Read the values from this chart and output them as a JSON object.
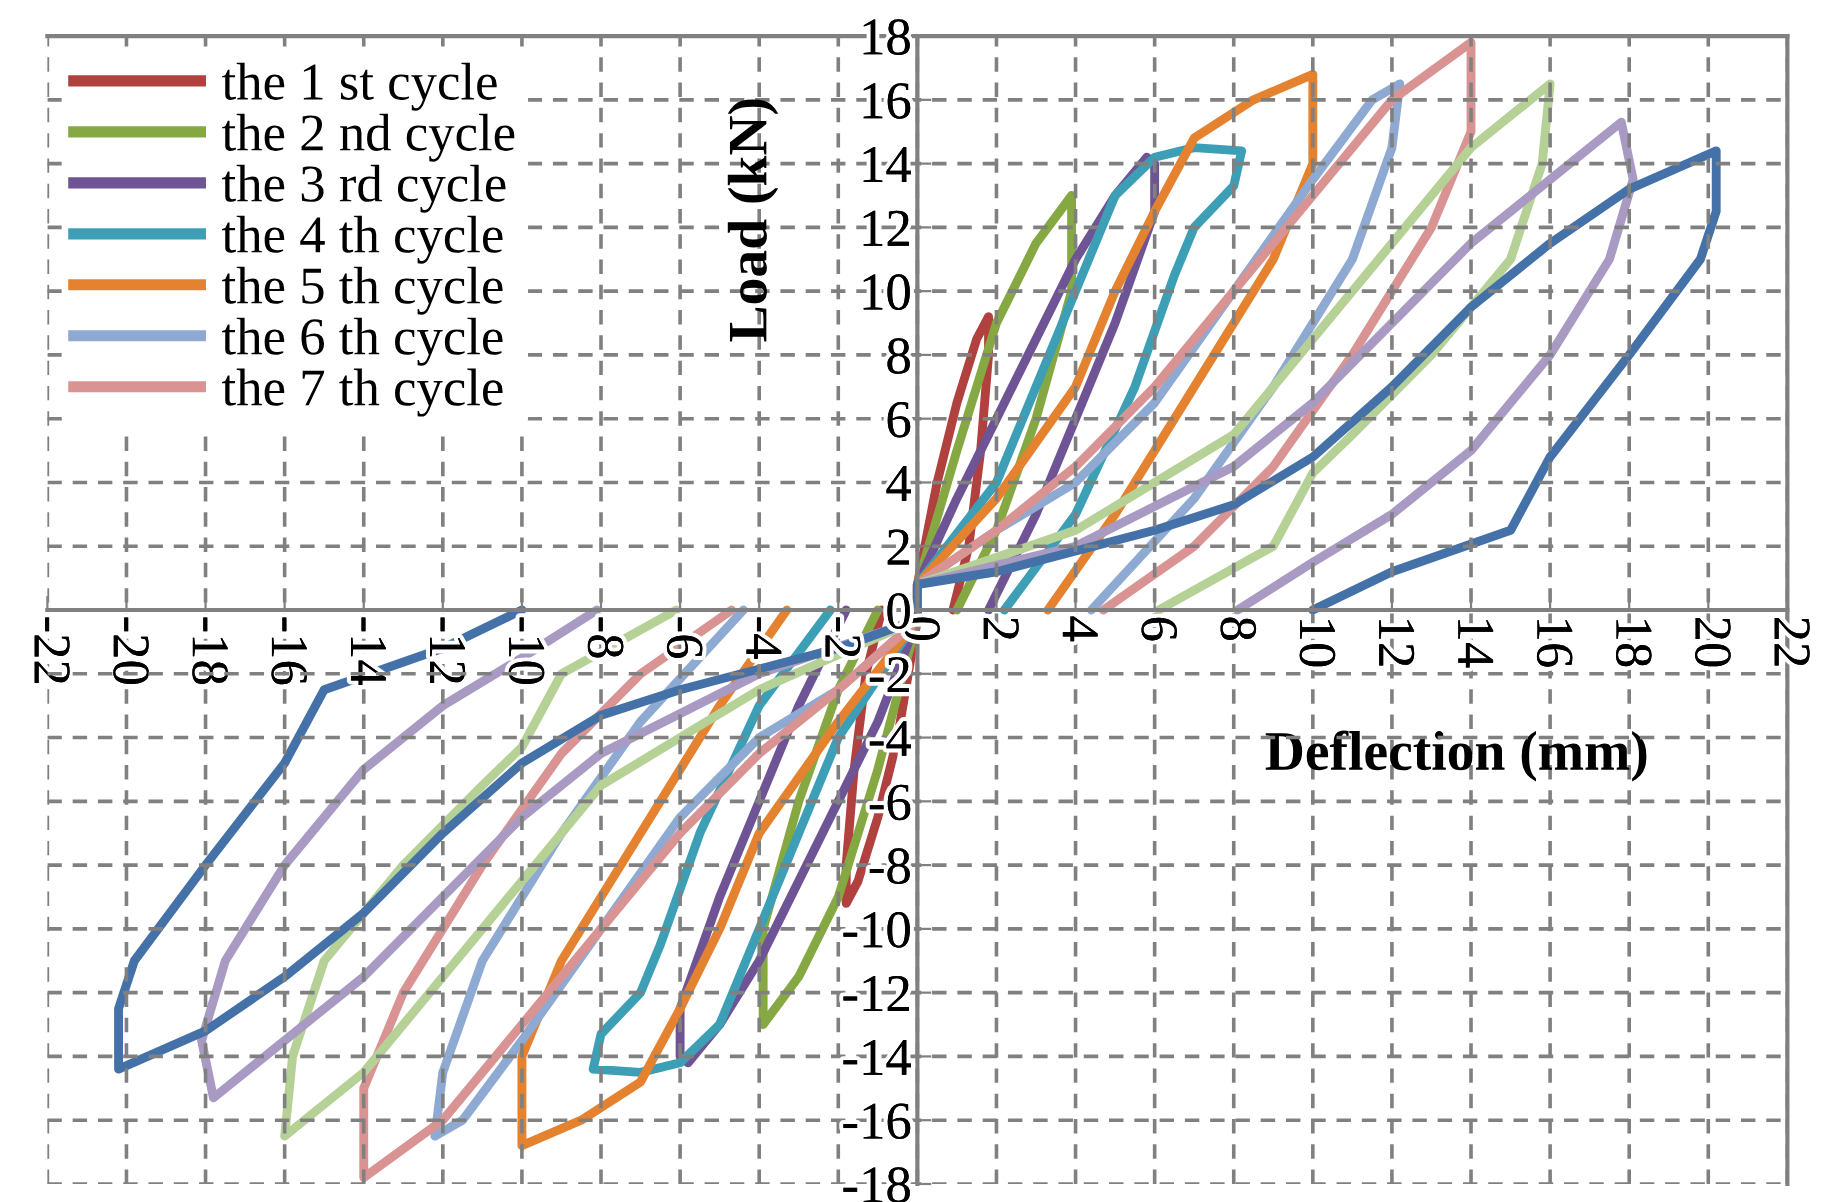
{
  "chart_data": {
    "type": "line",
    "xlabel": "Deflection (mm)",
    "ylabel": "Load (kN)",
    "xlim": [
      -22,
      22
    ],
    "ylim": [
      -18,
      18
    ],
    "xticks": [
      -22,
      -20,
      -18,
      -16,
      -14,
      -12,
      -10,
      -8,
      -6,
      -4,
      -2,
      0,
      2,
      4,
      6,
      8,
      10,
      12,
      14,
      16,
      18,
      20,
      22
    ],
    "yticks": [
      -18,
      -16,
      -14,
      -12,
      -10,
      -8,
      -6,
      -4,
      -2,
      0,
      2,
      4,
      6,
      8,
      10,
      12,
      14,
      16,
      18
    ],
    "grid": true,
    "legend": "top left",
    "marker": "none",
    "line_style": "solid",
    "series": [
      {
        "name": "the 1 st cycle",
        "color": "#b0413e",
        "x": [
          -0.9,
          -1.3,
          -1.6,
          -1.8,
          -1.8,
          -1.5,
          -1,
          -0.5,
          0,
          0,
          0.5,
          1,
          1.5,
          1.8,
          1.8,
          1.6,
          1.3,
          0.9
        ],
        "values": [
          0,
          -2,
          -5,
          -8,
          -9.2,
          -8.5,
          -6.5,
          -4,
          -0.3,
          0.8,
          4,
          6.5,
          8.5,
          9.2,
          8,
          5,
          2,
          0
        ]
      },
      {
        "name": "the 2 nd cycle",
        "color": "#86a842",
        "x": [
          -1,
          -2,
          -3,
          -3.9,
          -3.9,
          -3,
          -2,
          -1,
          0,
          0,
          1,
          2,
          3,
          3.9,
          3.9,
          3,
          2,
          1
        ],
        "values": [
          0,
          -2.5,
          -6,
          -10,
          -13,
          -11.5,
          -9,
          -5,
          -0.3,
          0.8,
          5,
          9,
          11.5,
          13,
          10,
          6,
          2.5,
          0
        ]
      },
      {
        "name": "the 3 rd cycle",
        "color": "#6f5495",
        "x": [
          -1.8,
          -3,
          -4,
          -5,
          -6,
          -6,
          -5.8,
          -5,
          -4,
          -3,
          -2,
          -1,
          0,
          0,
          1,
          2,
          3,
          4,
          5,
          5.8,
          6,
          6,
          5,
          4,
          3,
          1.8
        ],
        "values": [
          0,
          -3,
          -6,
          -9,
          -12.5,
          -14,
          -14.2,
          -13,
          -11,
          -8.5,
          -6,
          -3.5,
          -0.3,
          0.8,
          3.5,
          6,
          8.5,
          11,
          13,
          14.2,
          14,
          12.5,
          9,
          6,
          3,
          0
        ]
      },
      {
        "name": "the 4 th cycle",
        "color": "#3d9fb5",
        "x": [
          -2.2,
          -4,
          -5.5,
          -6.5,
          -7,
          -8,
          -8.2,
          -7,
          -6,
          -5,
          -4,
          -3,
          -2,
          0,
          0,
          2,
          3,
          4,
          5,
          6,
          7,
          8.2,
          8,
          7,
          6.5,
          5.5,
          4,
          2.2
        ],
        "values": [
          0,
          -3,
          -7,
          -10.5,
          -12,
          -13.3,
          -14.4,
          -14.5,
          -14.2,
          -13,
          -10,
          -7,
          -4,
          -0.3,
          0.8,
          4,
          7,
          10,
          13,
          14.2,
          14.5,
          14.4,
          13.3,
          12,
          10.5,
          7,
          3,
          0
        ]
      },
      {
        "name": "the 5 th cycle",
        "color": "#e5822f",
        "x": [
          -3.3,
          -5,
          -7,
          -9,
          -10,
          -10,
          -8.5,
          -7,
          -6,
          -5,
          -4,
          -2,
          0,
          0,
          2,
          4,
          5,
          6,
          7,
          8.5,
          10,
          10,
          9,
          7,
          5,
          3.3
        ],
        "values": [
          0,
          -3,
          -7,
          -11,
          -14,
          -16.8,
          -16,
          -14.8,
          -12.5,
          -10,
          -7,
          -3.5,
          -0.3,
          0.8,
          3.5,
          7,
          10,
          12.5,
          14.8,
          16,
          16.8,
          14,
          11,
          7,
          3,
          0
        ]
      },
      {
        "name": "the 6 th cycle",
        "color": "#8eaad3",
        "x": [
          -4.4,
          -7,
          -9,
          -11,
          -12,
          -12.2,
          -11.5,
          -10,
          -8,
          -6,
          -4,
          -2,
          0,
          0,
          2,
          4,
          6,
          8,
          10,
          11.5,
          12.2,
          12,
          11,
          9,
          7,
          4.4
        ],
        "values": [
          0,
          -3.5,
          -7,
          -11,
          -14.5,
          -16.5,
          -16,
          -13.5,
          -10,
          -6.5,
          -4,
          -2.5,
          -0.3,
          0.8,
          2.5,
          4,
          6.5,
          10,
          13.5,
          16,
          16.5,
          14.5,
          11,
          7,
          3.5,
          0
        ]
      },
      {
        "name": "the 7 th cycle",
        "color": "#d99392",
        "x": [
          -4.7,
          -7,
          -9,
          -11,
          -13,
          -14,
          -14,
          -12,
          -10,
          -8,
          -6,
          -4,
          -2,
          0,
          0,
          2,
          4,
          6,
          8,
          10,
          12,
          14,
          14,
          13,
          11,
          9,
          7,
          4.7
        ],
        "values": [
          0,
          -2,
          -4.5,
          -8,
          -12,
          -15,
          -17.8,
          -16,
          -13,
          -10,
          -7,
          -4.5,
          -2.5,
          -0.3,
          0.8,
          2.5,
          4.5,
          7,
          10,
          13,
          16,
          17.8,
          15,
          12,
          8,
          4.5,
          2,
          0
        ]
      },
      {
        "color": "#b5d196",
        "x": [
          -6.1,
          -9,
          -10,
          -11,
          -13,
          -15,
          -15.8,
          -16,
          -14,
          -12,
          -10,
          -8,
          -4,
          0,
          0,
          4,
          8,
          10,
          12,
          14,
          16,
          15.8,
          15,
          13,
          11,
          10,
          9,
          6.1
        ],
        "values": [
          0,
          -2,
          -4.3,
          -5.5,
          -8,
          -11,
          -14,
          -16.5,
          -14.5,
          -11.5,
          -8.5,
          -5.5,
          -2.5,
          -0.3,
          0.8,
          2.5,
          5.5,
          8.5,
          11.5,
          14.5,
          16.5,
          14,
          11,
          8,
          5.5,
          4.3,
          2,
          0
        ]
      },
      {
        "color": "#a89ac3",
        "x": [
          -8.1,
          -10,
          -12,
          -14,
          -16,
          -17.5,
          -18.1,
          -17.8,
          -16,
          -14,
          -12,
          -10,
          -8,
          -4,
          0,
          0,
          4,
          8,
          10,
          12,
          14,
          16,
          17.8,
          18.1,
          17.5,
          16,
          14,
          12,
          10,
          8.1
        ],
        "values": [
          0,
          -1.5,
          -3,
          -5,
          -8,
          -11,
          -13.5,
          -15.3,
          -13.5,
          -11.5,
          -9,
          -6.5,
          -4.5,
          -2,
          -0.3,
          0.8,
          2,
          4.5,
          6.5,
          9,
          11.5,
          13.5,
          15.3,
          13.5,
          11,
          8,
          5,
          3,
          1.5,
          0
        ]
      },
      {
        "color": "#4472a8",
        "x": [
          -10,
          -12,
          -15,
          -16,
          -18,
          -19.8,
          -20.2,
          -20.2,
          -18,
          -16,
          -14,
          -12,
          -10,
          -8,
          -6,
          -2,
          0,
          0,
          2,
          6,
          8,
          10,
          12,
          14,
          16,
          18,
          20.2,
          20.2,
          19.8,
          18,
          16,
          15,
          12,
          10
        ],
        "values": [
          0,
          -1.2,
          -2.5,
          -4.8,
          -8,
          -11,
          -12.5,
          -14.4,
          -13.2,
          -11.5,
          -9.5,
          -7,
          -4.8,
          -3.3,
          -2.5,
          -1.2,
          -0.3,
          0.8,
          1.2,
          2.5,
          3.3,
          4.8,
          7,
          9.5,
          11.5,
          13.2,
          14.4,
          12.5,
          11,
          8,
          4.8,
          2.5,
          1.2,
          0
        ]
      }
    ]
  }
}
